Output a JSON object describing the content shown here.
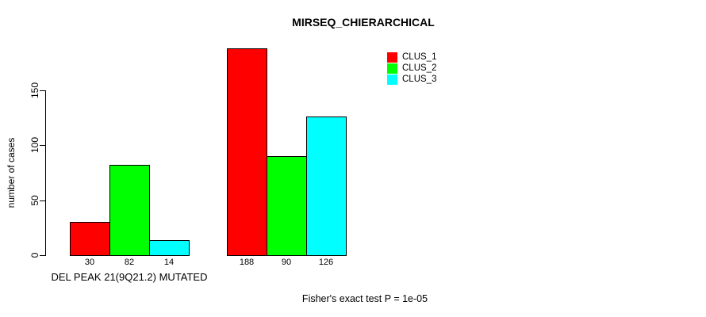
{
  "chart_data": {
    "type": "bar",
    "title": "MIRSEQ_CHIERARCHICAL",
    "ylabel": "number of cases",
    "xlabel": "",
    "ylim": [
      0,
      150
    ],
    "yticks": [
      0,
      50,
      100,
      150
    ],
    "grid": false,
    "legend_position": "top-right",
    "bar_value_labels": true,
    "series": [
      {
        "name": "CLUS_1",
        "color": "#ff0000"
      },
      {
        "name": "CLUS_2",
        "color": "#00ff00"
      },
      {
        "name": "CLUS_3",
        "color": "#00ffff"
      }
    ],
    "groups": [
      {
        "label": "DEL PEAK 21(9Q21.2) MUTATED",
        "values": [
          30,
          82,
          14
        ]
      },
      {
        "label": "",
        "values": [
          188,
          90,
          126
        ]
      }
    ],
    "footnote": "Fisher's exact test P = 1e-05"
  }
}
